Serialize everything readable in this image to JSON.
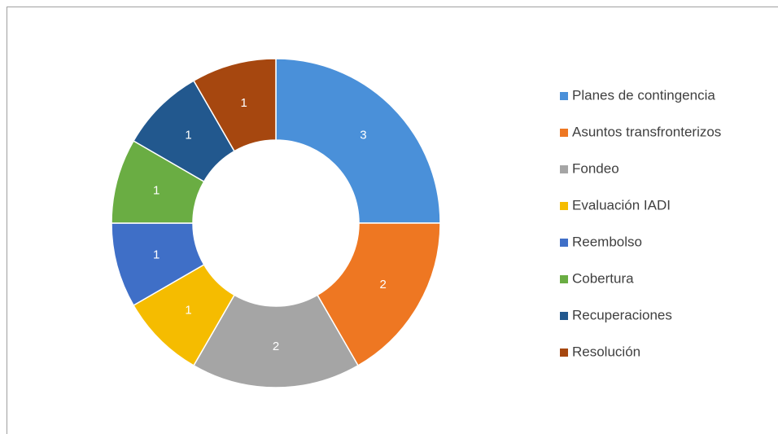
{
  "chart_data": {
    "type": "donut",
    "categories": [
      "Planes de contingencia",
      "Asuntos transfronterizos",
      "Fondeo",
      "Evaluación IADI",
      "Reembolso",
      "Cobertura",
      "Recuperaciones",
      "Resolución"
    ],
    "values": [
      3,
      2,
      2,
      1,
      1,
      1,
      1,
      1
    ],
    "colors": [
      "#4a90d9",
      "#ee7722",
      "#a5a5a5",
      "#f5bc00",
      "#3f6fc7",
      "#6aad43",
      "#22588e",
      "#a6470f"
    ],
    "legend": "right"
  }
}
